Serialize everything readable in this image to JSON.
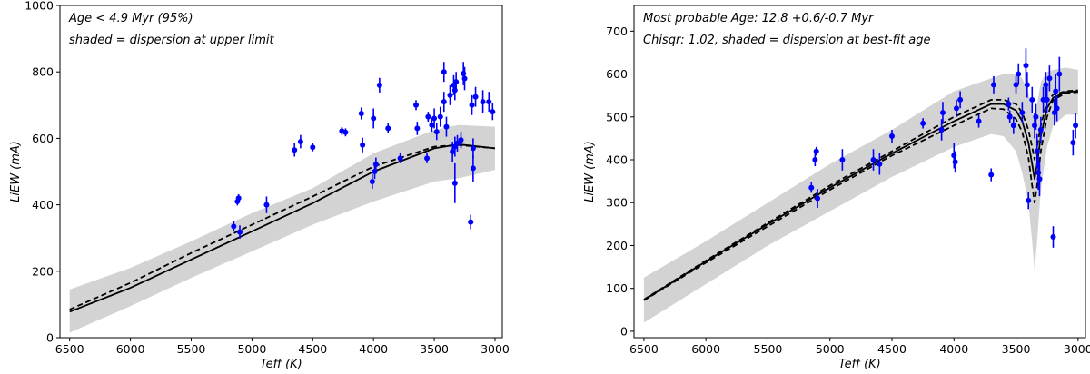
{
  "chart_data": [
    {
      "type": "scatter",
      "annotations": [
        "Age < 4.9 Myr (95%)",
        "shaded = dispersion at upper limit"
      ],
      "xlabel": "Teff (K)",
      "ylabel": "LiEW (mA)",
      "xlim": [
        6580,
        2940
      ],
      "ylim": [
        0,
        1000
      ],
      "xticks": [
        6500,
        6000,
        5500,
        5000,
        4500,
        4000,
        3500,
        3000
      ],
      "yticks": [
        0,
        200,
        400,
        600,
        800,
        1000
      ],
      "grid": false,
      "colors": {
        "points": "#0000ff",
        "band": "#d3d3d3",
        "model": "#000000"
      },
      "band_x": [
        6500,
        6000,
        5500,
        5000,
        4500,
        4000,
        3500,
        3300,
        3000
      ],
      "band_lower": [
        15,
        95,
        180,
        260,
        340,
        410,
        470,
        480,
        505
      ],
      "band_upper": [
        145,
        210,
        290,
        375,
        450,
        555,
        625,
        640,
        635
      ],
      "model_solid": {
        "x": [
          6500,
          6000,
          5500,
          5000,
          4500,
          4000,
          3500,
          3300,
          3000
        ],
        "y": [
          78,
          150,
          235,
          320,
          405,
          500,
          570,
          582,
          570
        ]
      },
      "model_dashed": {
        "x": [
          6500,
          6000,
          5500,
          5000,
          4500,
          4000,
          3500,
          3300,
          3000
        ],
        "y": [
          85,
          165,
          255,
          340,
          425,
          515,
          575,
          580,
          570
        ]
      },
      "points": [
        {
          "x": 5150,
          "y": 335,
          "err": 15
        },
        {
          "x": 5120,
          "y": 410,
          "err": 12
        },
        {
          "x": 5110,
          "y": 420,
          "err": 12
        },
        {
          "x": 5100,
          "y": 318,
          "err": 20
        },
        {
          "x": 4880,
          "y": 400,
          "err": 25
        },
        {
          "x": 4650,
          "y": 565,
          "err": 20
        },
        {
          "x": 4600,
          "y": 590,
          "err": 20
        },
        {
          "x": 4500,
          "y": 573,
          "err": 12
        },
        {
          "x": 4260,
          "y": 622,
          "err": 12
        },
        {
          "x": 4230,
          "y": 618,
          "err": 12
        },
        {
          "x": 4100,
          "y": 675,
          "err": 18
        },
        {
          "x": 4090,
          "y": 580,
          "err": 22
        },
        {
          "x": 4010,
          "y": 470,
          "err": 22
        },
        {
          "x": 3990,
          "y": 500,
          "err": 22
        },
        {
          "x": 4000,
          "y": 660,
          "err": 30
        },
        {
          "x": 3980,
          "y": 522,
          "err": 20
        },
        {
          "x": 3950,
          "y": 760,
          "err": 22
        },
        {
          "x": 3880,
          "y": 630,
          "err": 15
        },
        {
          "x": 3780,
          "y": 540,
          "err": 15
        },
        {
          "x": 3650,
          "y": 700,
          "err": 15
        },
        {
          "x": 3640,
          "y": 630,
          "err": 20
        },
        {
          "x": 3560,
          "y": 540,
          "err": 15
        },
        {
          "x": 3550,
          "y": 665,
          "err": 15
        },
        {
          "x": 3520,
          "y": 640,
          "err": 20
        },
        {
          "x": 3500,
          "y": 660,
          "err": 30
        },
        {
          "x": 3480,
          "y": 620,
          "err": 25
        },
        {
          "x": 3450,
          "y": 665,
          "err": 30
        },
        {
          "x": 3420,
          "y": 710,
          "err": 30
        },
        {
          "x": 3420,
          "y": 800,
          "err": 30
        },
        {
          "x": 3400,
          "y": 635,
          "err": 30
        },
        {
          "x": 3370,
          "y": 730,
          "err": 30
        },
        {
          "x": 3340,
          "y": 760,
          "err": 30
        },
        {
          "x": 3330,
          "y": 745,
          "err": 30
        },
        {
          "x": 3320,
          "y": 770,
          "err": 30
        },
        {
          "x": 3350,
          "y": 560,
          "err": 30
        },
        {
          "x": 3330,
          "y": 575,
          "err": 30
        },
        {
          "x": 3330,
          "y": 465,
          "err": 60
        },
        {
          "x": 3310,
          "y": 585,
          "err": 25
        },
        {
          "x": 3280,
          "y": 595,
          "err": 25
        },
        {
          "x": 3260,
          "y": 795,
          "err": 35
        },
        {
          "x": 3250,
          "y": 780,
          "err": 35
        },
        {
          "x": 3200,
          "y": 348,
          "err": 22
        },
        {
          "x": 3190,
          "y": 700,
          "err": 30
        },
        {
          "x": 3180,
          "y": 570,
          "err": 30
        },
        {
          "x": 3180,
          "y": 510,
          "err": 40
        },
        {
          "x": 3160,
          "y": 725,
          "err": 30
        },
        {
          "x": 3100,
          "y": 710,
          "err": 35
        },
        {
          "x": 3050,
          "y": 710,
          "err": 30
        },
        {
          "x": 3020,
          "y": 680,
          "err": 25
        }
      ]
    },
    {
      "type": "scatter",
      "annotations": [
        "Most probable Age: 12.8 +0.6/-0.7 Myr",
        "Chisqr: 1.02, shaded = dispersion at best-fit age"
      ],
      "xlabel": "Teff (K)",
      "ylabel": "LiEW (mA)",
      "xlim": [
        6580,
        2940
      ],
      "ylim": [
        -15,
        760
      ],
      "xticks": [
        6500,
        6000,
        5500,
        5000,
        4500,
        4000,
        3500,
        3000
      ],
      "yticks": [
        0,
        100,
        200,
        300,
        400,
        500,
        600,
        700
      ],
      "grid": false,
      "colors": {
        "points": "#0000ff",
        "band": "#d3d3d3",
        "model": "#000000"
      },
      "band_x": [
        6500,
        6000,
        5500,
        5000,
        4500,
        4000,
        3700,
        3600,
        3500,
        3450,
        3400,
        3370,
        3350,
        3330,
        3300,
        3250,
        3200,
        3100,
        3000
      ],
      "band_lower": [
        20,
        110,
        200,
        280,
        360,
        430,
        460,
        455,
        420,
        370,
        300,
        210,
        140,
        210,
        330,
        430,
        480,
        505,
        505
      ],
      "band_upper": [
        125,
        210,
        300,
        390,
        470,
        560,
        590,
        600,
        600,
        590,
        555,
        520,
        490,
        530,
        580,
        605,
        610,
        615,
        610
      ],
      "model_solid": {
        "x": [
          6500,
          6000,
          5500,
          5000,
          4500,
          4000,
          3700,
          3600,
          3500,
          3450,
          3400,
          3370,
          3350,
          3330,
          3300,
          3250,
          3200,
          3100,
          3000
        ],
        "y": [
          73,
          163,
          250,
          335,
          415,
          490,
          530,
          530,
          515,
          490,
          440,
          390,
          355,
          390,
          455,
          520,
          545,
          558,
          560
        ]
      },
      "model_dashed": [
        {
          "x": [
            6500,
            6000,
            5500,
            5000,
            4500,
            4000,
            3700,
            3600,
            3500,
            3450,
            3400,
            3370,
            3350,
            3330,
            3300,
            3250,
            3200,
            3100,
            3000
          ],
          "y": [
            72,
            160,
            245,
            330,
            410,
            480,
            520,
            518,
            495,
            465,
            405,
            340,
            300,
            340,
            420,
            500,
            540,
            555,
            558
          ]
        },
        {
          "x": [
            6500,
            6000,
            5500,
            5000,
            4500,
            4000,
            3700,
            3600,
            3500,
            3450,
            3400,
            3370,
            3350,
            3330,
            3300,
            3250,
            3200,
            3100,
            3000
          ],
          "y": [
            74,
            165,
            253,
            340,
            420,
            500,
            540,
            540,
            530,
            510,
            470,
            430,
            400,
            430,
            480,
            535,
            552,
            560,
            562
          ]
        }
      ],
      "points": [
        {
          "x": 5150,
          "y": 335,
          "err": 12
        },
        {
          "x": 5120,
          "y": 400,
          "err": 15
        },
        {
          "x": 5110,
          "y": 420,
          "err": 10
        },
        {
          "x": 5100,
          "y": 310,
          "err": 22
        },
        {
          "x": 4900,
          "y": 400,
          "err": 25
        },
        {
          "x": 4650,
          "y": 400,
          "err": 25
        },
        {
          "x": 4600,
          "y": 390,
          "err": 25
        },
        {
          "x": 4500,
          "y": 455,
          "err": 15
        },
        {
          "x": 4250,
          "y": 485,
          "err": 12
        },
        {
          "x": 4100,
          "y": 470,
          "err": 25
        },
        {
          "x": 4090,
          "y": 510,
          "err": 25
        },
        {
          "x": 4000,
          "y": 410,
          "err": 30
        },
        {
          "x": 3990,
          "y": 395,
          "err": 25
        },
        {
          "x": 3980,
          "y": 520,
          "err": 20
        },
        {
          "x": 3950,
          "y": 540,
          "err": 20
        },
        {
          "x": 3800,
          "y": 490,
          "err": 15
        },
        {
          "x": 3700,
          "y": 365,
          "err": 15
        },
        {
          "x": 3680,
          "y": 575,
          "err": 20
        },
        {
          "x": 3560,
          "y": 530,
          "err": 15
        },
        {
          "x": 3550,
          "y": 500,
          "err": 15
        },
        {
          "x": 3520,
          "y": 480,
          "err": 20
        },
        {
          "x": 3500,
          "y": 575,
          "err": 20
        },
        {
          "x": 3480,
          "y": 600,
          "err": 25
        },
        {
          "x": 3450,
          "y": 510,
          "err": 25
        },
        {
          "x": 3420,
          "y": 620,
          "err": 40
        },
        {
          "x": 3410,
          "y": 575,
          "err": 30
        },
        {
          "x": 3400,
          "y": 305,
          "err": 20
        },
        {
          "x": 3370,
          "y": 540,
          "err": 30
        },
        {
          "x": 3350,
          "y": 480,
          "err": 30
        },
        {
          "x": 3340,
          "y": 500,
          "err": 30
        },
        {
          "x": 3330,
          "y": 420,
          "err": 40
        },
        {
          "x": 3320,
          "y": 370,
          "err": 40
        },
        {
          "x": 3310,
          "y": 355,
          "err": 40
        },
        {
          "x": 3300,
          "y": 470,
          "err": 30
        },
        {
          "x": 3280,
          "y": 540,
          "err": 30
        },
        {
          "x": 3260,
          "y": 575,
          "err": 30
        },
        {
          "x": 3250,
          "y": 540,
          "err": 30
        },
        {
          "x": 3230,
          "y": 590,
          "err": 30
        },
        {
          "x": 3200,
          "y": 220,
          "err": 25
        },
        {
          "x": 3190,
          "y": 510,
          "err": 30
        },
        {
          "x": 3180,
          "y": 560,
          "err": 40
        },
        {
          "x": 3170,
          "y": 520,
          "err": 30
        },
        {
          "x": 3150,
          "y": 600,
          "err": 40
        },
        {
          "x": 3040,
          "y": 440,
          "err": 30
        },
        {
          "x": 3020,
          "y": 480,
          "err": 30
        }
      ]
    }
  ]
}
